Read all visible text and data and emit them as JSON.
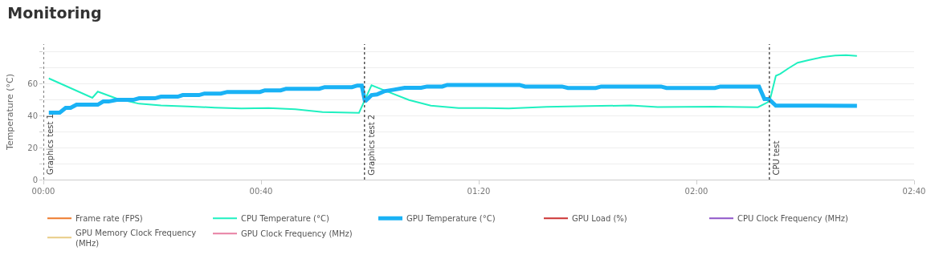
{
  "chart_data": {
    "type": "line",
    "title": "Monitoring",
    "ylabel": "Temperature (°C)",
    "xlim": [
      0,
      160
    ],
    "xticks": [
      {
        "value": 0,
        "label": "00:00"
      },
      {
        "value": 40,
        "label": "00:40"
      },
      {
        "value": 80,
        "label": "01:20"
      },
      {
        "value": 120,
        "label": "02:00"
      },
      {
        "value": 160,
        "label": "02:40"
      }
    ],
    "ylim": [
      0,
      85
    ],
    "yticks": [
      0,
      {
        "value": 10,
        "label": null
      },
      20,
      {
        "value": 30,
        "label": null
      },
      40,
      {
        "value": 50,
        "label": null
      },
      60,
      {
        "value": 70,
        "label": null
      },
      {
        "value": 80,
        "label": null
      }
    ],
    "grid": "y",
    "legend": "bottom",
    "marker": "none",
    "line_style": "solid",
    "series": [
      {
        "name": "Frame rate (FPS)",
        "color": "#ee7a2c"
      },
      {
        "name": "CPU Temperature (°C)",
        "color": "#1ff0c0",
        "x": [
          1,
          9,
          10,
          13.5,
          17.6,
          21.6,
          26.5,
          31.5,
          36.4,
          41.4,
          46.3,
          51.3,
          58,
          60.3,
          63.1,
          67.2,
          71.2,
          76.3,
          81.4,
          85.5,
          92.5,
          100.2,
          107.9,
          112.9,
          123.1,
          131.3,
          133.1,
          133.6,
          134.6,
          135.4,
          136.9,
          138.6,
          140.6,
          143.1,
          145.5,
          147.5,
          149.5
        ],
        "values": [
          63.5,
          51.3,
          55.2,
          50.8,
          47.6,
          46.5,
          45.9,
          45.2,
          44.6,
          44.9,
          44.1,
          42.4,
          41.9,
          59.2,
          55.4,
          49.9,
          46.4,
          44.9,
          44.9,
          44.6,
          45.6,
          46.1,
          46.5,
          45.5,
          45.8,
          45.4,
          48.5,
          51.3,
          65.1,
          66.3,
          69.8,
          73.3,
          74.9,
          76.8,
          77.8,
          78.1,
          77.6
        ]
      },
      {
        "name": "GPU Temperature (°C)",
        "color": "#1ab2f5",
        "x": [
          1,
          3,
          4.1,
          5,
          6.1,
          10,
          11,
          12,
          13.5,
          16.5,
          17.6,
          20.5,
          21.6,
          24.7,
          25.6,
          28.6,
          29.6,
          32.6,
          33.8,
          39.8,
          40.7,
          43.6,
          44.6,
          50.7,
          51.7,
          56.7,
          57.7,
          58.5,
          59.1,
          60.3,
          61.3,
          62.6,
          64.4,
          66.4,
          69.4,
          70.5,
          73.3,
          74.2,
          87.5,
          88.5,
          95.3,
          96.4,
          101.5,
          102.5,
          113.5,
          114.5,
          123.4,
          124.4,
          131.5,
          132.5,
          133.3,
          134.6,
          149.5
        ],
        "values": [
          42,
          42,
          45,
          45,
          47,
          47,
          49,
          49,
          50,
          50,
          51,
          51,
          52,
          52,
          53,
          53,
          54,
          54,
          55,
          55,
          56,
          56,
          57,
          57,
          58,
          58,
          59,
          59,
          49,
          53,
          53.4,
          55.4,
          56.4,
          57.6,
          57.6,
          58.4,
          58.4,
          59.4,
          59.4,
          58.4,
          58.4,
          57.5,
          57.5,
          58.4,
          58.4,
          57.5,
          57.5,
          58.4,
          58.4,
          50.5,
          50.5,
          46.4,
          46.3
        ]
      },
      {
        "name": "GPU Load (%)",
        "color": "#cc3333"
      },
      {
        "name": "CPU Clock Frequency (MHz)",
        "color": "#8e55c9"
      },
      {
        "name": "GPU Memory Clock Frequency (MHz)",
        "color": "#e8cc85"
      },
      {
        "name": "GPU Clock Frequency (MHz)",
        "color": "#e87fa3"
      }
    ],
    "ref_lines": [
      {
        "axis": "x",
        "value": 0,
        "label": "Graphics test 1",
        "color": "#555555",
        "line_style": "dotted"
      },
      {
        "axis": "x",
        "value": 59,
        "label": "Graphics test 2",
        "color": "#555555",
        "line_style": "dotted"
      },
      {
        "axis": "x",
        "value": 133.4,
        "label": "CPU test",
        "color": "#555555",
        "line_style": "dotted"
      }
    ]
  }
}
